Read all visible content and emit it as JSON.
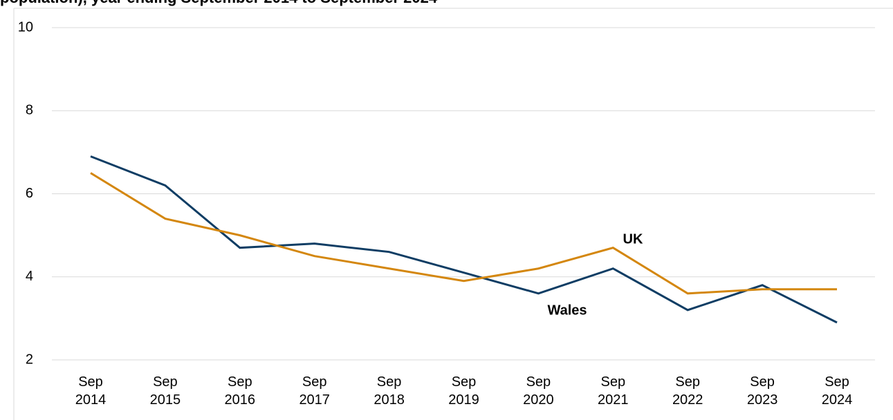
{
  "chart_data": {
    "type": "line",
    "title": "population), year ending September 2014 to September 2024",
    "categories": [
      "Sep 2014",
      "Sep 2015",
      "Sep 2016",
      "Sep 2017",
      "Sep 2018",
      "Sep 2019",
      "Sep 2020",
      "Sep 2021",
      "Sep 2022",
      "Sep 2023",
      "Sep 2024"
    ],
    "series": [
      {
        "name": "Wales",
        "color": "#0f3d64",
        "values": [
          6.9,
          6.2,
          4.7,
          4.8,
          4.6,
          4.1,
          3.6,
          4.2,
          3.2,
          3.8,
          2.9
        ]
      },
      {
        "name": "UK",
        "color": "#d4870f",
        "values": [
          6.5,
          5.4,
          5.0,
          4.5,
          4.2,
          3.9,
          4.2,
          4.7,
          3.6,
          3.7,
          3.7
        ]
      }
    ],
    "ylim": [
      2,
      10
    ],
    "yticks": [
      2,
      4,
      6,
      8,
      10
    ],
    "grid": true
  }
}
